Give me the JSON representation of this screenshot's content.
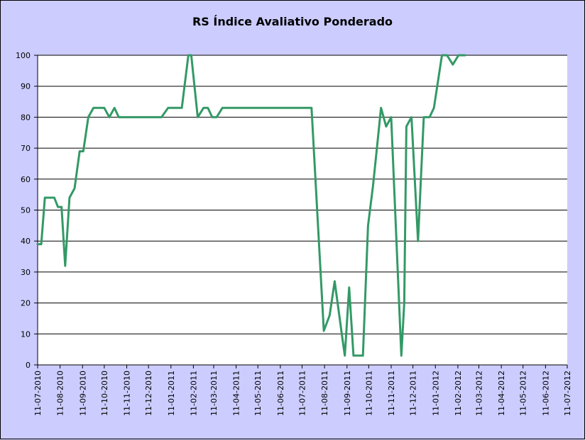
{
  "chart_data": {
    "type": "line",
    "title": "RS Índice Avaliativo Ponderado",
    "xlabel": "",
    "ylabel": "",
    "ylim": [
      0,
      100
    ],
    "yticks": [
      0,
      10,
      20,
      30,
      40,
      50,
      60,
      70,
      80,
      90,
      100
    ],
    "xlim": [
      "2010-07-11",
      "2012-07-11"
    ],
    "xticks": [
      "11-07-2010",
      "11-08-2010",
      "11-09-2010",
      "11-10-2010",
      "11-11-2010",
      "11-12-2010",
      "11-01-2011",
      "11-02-2011",
      "11-03-2011",
      "11-04-2011",
      "11-05-2011",
      "11-06-2011",
      "11-07-2011",
      "11-08-2011",
      "11-09-2011",
      "11-10-2011",
      "11-11-2011",
      "11-12-2011",
      "11-01-2012",
      "11-02-2012",
      "11-03-2012",
      "11-04-2012",
      "11-05-2012",
      "11-06-2012",
      "11-07-2012"
    ],
    "grid": {
      "horizontal": true,
      "vertical": false
    },
    "colors": {
      "plot_background": "#ffffff",
      "outer_background": "#ccccff",
      "line": "#339966",
      "gridline": "#000000"
    },
    "series": [
      {
        "name": "",
        "points": [
          [
            "2010-07-11",
            39
          ],
          [
            "2010-07-16",
            39
          ],
          [
            "2010-07-21",
            54
          ],
          [
            "2010-08-03",
            54
          ],
          [
            "2010-08-08",
            51
          ],
          [
            "2010-08-13",
            51
          ],
          [
            "2010-08-18",
            32
          ],
          [
            "2010-08-24",
            54
          ],
          [
            "2010-08-31",
            57
          ],
          [
            "2010-09-07",
            69
          ],
          [
            "2010-09-12",
            69
          ],
          [
            "2010-09-19",
            80
          ],
          [
            "2010-09-26",
            83
          ],
          [
            "2010-10-11",
            83
          ],
          [
            "2010-10-18",
            80
          ],
          [
            "2010-10-25",
            83
          ],
          [
            "2010-10-31",
            80
          ],
          [
            "2010-12-29",
            80
          ],
          [
            "2011-01-07",
            83
          ],
          [
            "2011-01-26",
            83
          ],
          [
            "2011-02-04",
            100
          ],
          [
            "2011-02-08",
            100
          ],
          [
            "2011-02-17",
            80
          ],
          [
            "2011-02-25",
            83
          ],
          [
            "2011-03-03",
            83
          ],
          [
            "2011-03-09",
            80
          ],
          [
            "2011-03-15",
            80
          ],
          [
            "2011-03-23",
            83
          ],
          [
            "2011-07-24",
            83
          ],
          [
            "2011-08-10",
            11
          ],
          [
            "2011-08-18",
            16
          ],
          [
            "2011-08-25",
            27
          ],
          [
            "2011-09-05",
            8
          ],
          [
            "2011-09-08",
            3
          ],
          [
            "2011-09-14",
            25
          ],
          [
            "2011-09-20",
            3
          ],
          [
            "2011-10-03",
            3
          ],
          [
            "2011-10-10",
            45
          ],
          [
            "2011-10-17",
            58
          ],
          [
            "2011-10-28",
            83
          ],
          [
            "2011-11-04",
            77
          ],
          [
            "2011-11-11",
            80
          ],
          [
            "2011-11-25",
            3
          ],
          [
            "2011-11-29",
            20
          ],
          [
            "2011-12-02",
            77
          ],
          [
            "2011-12-09",
            80
          ],
          [
            "2011-12-18",
            40
          ],
          [
            "2011-12-26",
            80
          ],
          [
            "2012-01-03",
            80
          ],
          [
            "2012-01-09",
            83
          ],
          [
            "2012-01-20",
            100
          ],
          [
            "2012-01-27",
            100
          ],
          [
            "2012-02-04",
            97
          ],
          [
            "2012-02-12",
            100
          ],
          [
            "2012-02-21",
            100
          ]
        ]
      }
    ]
  }
}
